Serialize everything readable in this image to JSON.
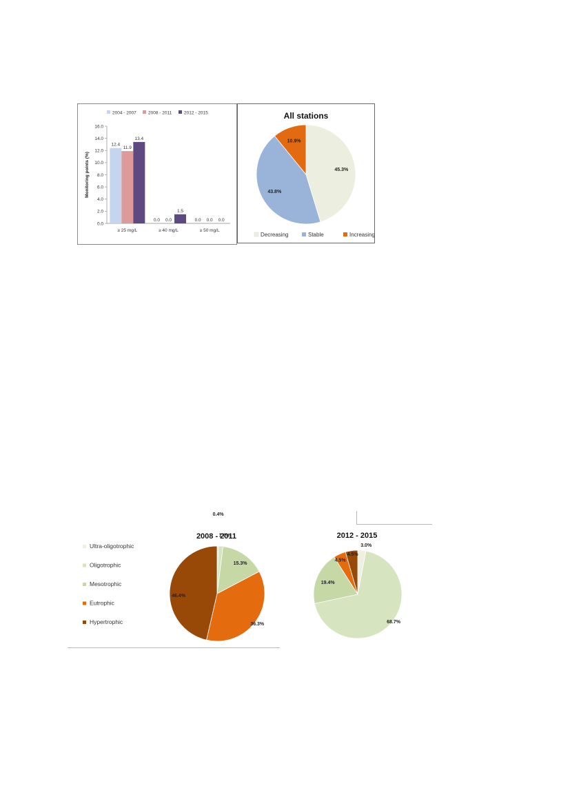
{
  "chart_data": [
    {
      "type": "bar",
      "title": "",
      "xlabel": "",
      "ylabel": "Monitoring points (%)",
      "ylim": [
        0,
        16
      ],
      "yticks": [
        "0.0",
        "2.0",
        "4.0",
        "6.0",
        "8.0",
        "10.0",
        "12.0",
        "14.0",
        "16.0"
      ],
      "categories": [
        "≥ 25 mg/L",
        "≥ 40 mg/L",
        "≥ 50 mg/L"
      ],
      "series": [
        {
          "name": "2004 - 2007",
          "values": [
            12.4,
            0.0,
            0.0
          ],
          "labels": [
            "12.4",
            "0.0",
            "0.0"
          ],
          "color": "#c5d5ef"
        },
        {
          "name": "2008 - 2011",
          "values": [
            11.9,
            0.0,
            0.0
          ],
          "labels": [
            "11.9",
            "0.0",
            "0.0"
          ],
          "color": "#dc9a9a"
        },
        {
          "name": "2012 - 2015",
          "values": [
            13.4,
            1.5,
            0.0
          ],
          "labels": [
            "13.4",
            "1.5",
            "0.0"
          ],
          "color": "#5e4a80"
        }
      ],
      "legend": "top"
    },
    {
      "type": "pie",
      "title": "All stations",
      "slices": [
        {
          "name": "Decreasing",
          "value": 45.3,
          "label": "45.3%",
          "color": "#ecefe0"
        },
        {
          "name": "Stable",
          "value": 43.8,
          "label": "43.8%",
          "color": "#9ab4d9"
        },
        {
          "name": "Increasing",
          "value": 10.9,
          "label": "10.9%",
          "color": "#e26a10"
        }
      ],
      "legend": "bottom"
    },
    {
      "type": "pie",
      "title": "2008 - 2011",
      "slices": [
        {
          "name": "Ultra-oligotrophic",
          "value": 0.4,
          "label": "0.4%",
          "color": "#eef0e2"
        },
        {
          "name": "Oligotrophic",
          "value": 1.6,
          "label": "1.6%",
          "color": "#d7e4c0"
        },
        {
          "name": "Mesotrophic",
          "value": 15.3,
          "label": "15.3%",
          "color": "#c6d8a6"
        },
        {
          "name": "Eutrophic",
          "value": 36.3,
          "label": "36.3%",
          "color": "#e56b0f"
        },
        {
          "name": "Hypertrophic",
          "value": 46.4,
          "label": "46.4%",
          "color": "#984807"
        }
      ],
      "legend": "left"
    },
    {
      "type": "pie",
      "title": "2012 - 2015",
      "slices": [
        {
          "name": "Ultra-oligotrophic",
          "value": 3.0,
          "label": "3.0%",
          "color": "#eef0e2"
        },
        {
          "name": "Oligotrophic",
          "value": 68.7,
          "label": "68.7%",
          "color": "#d7e4c0"
        },
        {
          "name": "Mesotrophic",
          "value": 19.4,
          "label": "19.4%",
          "color": "#c6d8a6"
        },
        {
          "name": "Eutrophic",
          "value": 4.5,
          "label": "4.5%",
          "color": "#e56b0f"
        },
        {
          "name": "Hypertrophic",
          "value": 4.5,
          "label": "4.5%",
          "color": "#984807"
        }
      ]
    }
  ]
}
